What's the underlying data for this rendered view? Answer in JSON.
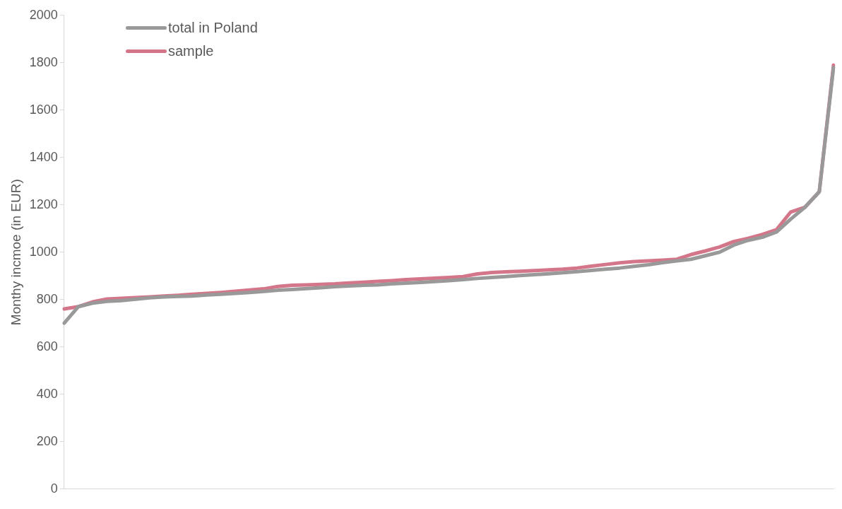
{
  "chart_data": {
    "type": "line",
    "ylabel": "Monthy incmoe (in EUR)",
    "categories": [
      null,
      null,
      null,
      null,
      null,
      null,
      null,
      null,
      null,
      null,
      null,
      null,
      null,
      null,
      null,
      null,
      null,
      null,
      null,
      null,
      null,
      null,
      null,
      null,
      null,
      null,
      null,
      null,
      null,
      null,
      null,
      null,
      null,
      null,
      null,
      null,
      null,
      null,
      null,
      null,
      null,
      null,
      null,
      null,
      null,
      null,
      null,
      null,
      null,
      null,
      null,
      null,
      null,
      null,
      null
    ],
    "series": [
      {
        "name": "total in Poland",
        "color": "#999999",
        "values": [
          700,
          770,
          785,
          792,
          795,
          801,
          807,
          811,
          813,
          815,
          819,
          822,
          826,
          830,
          834,
          839,
          842,
          846,
          850,
          854,
          857,
          860,
          862,
          866,
          869,
          872,
          876,
          880,
          884,
          889,
          893,
          897,
          901,
          905,
          909,
          913,
          918,
          923,
          928,
          933,
          940,
          947,
          956,
          963,
          970,
          985,
          1000,
          1030,
          1050,
          1063,
          1085,
          1140,
          1190,
          1255,
          1780
        ]
      },
      {
        "name": "sample",
        "color": "#d4768a",
        "values": [
          760,
          770,
          790,
          802,
          805,
          808,
          811,
          815,
          818,
          822,
          826,
          830,
          835,
          840,
          845,
          855,
          860,
          862,
          864,
          866,
          870,
          873,
          877,
          880,
          884,
          887,
          890,
          893,
          897,
          908,
          914,
          917,
          919,
          922,
          925,
          928,
          933,
          941,
          948,
          955,
          960,
          963,
          966,
          970,
          990,
          1005,
          1022,
          1045,
          1058,
          1075,
          1095,
          1170,
          1190,
          1255,
          1790
        ]
      }
    ],
    "ylim": [
      0,
      2000
    ],
    "yticks": [
      0,
      200,
      400,
      600,
      800,
      1000,
      1200,
      1400,
      1600,
      1800,
      2000
    ],
    "grid": false,
    "legend": "top left",
    "marker": "none",
    "line_style": "solid"
  }
}
